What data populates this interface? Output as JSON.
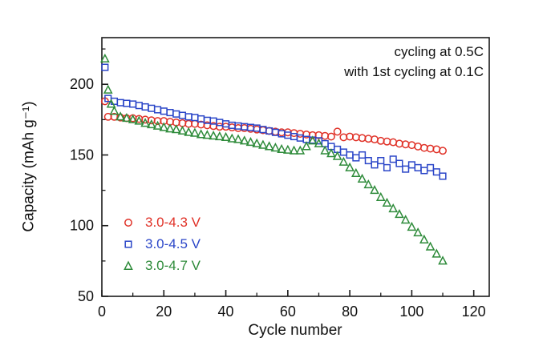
{
  "figure": {
    "background": "#ffffff"
  },
  "chart_data": {
    "type": "scatter",
    "title": "",
    "xlabel": "Cycle number",
    "ylabel": "Capacity (mAh g⁻¹)",
    "annotation": [
      "cycling at 0.5C",
      "with 1st cycling at 0.1C"
    ],
    "xlim": [
      0,
      125
    ],
    "ylim": [
      50,
      233
    ],
    "xticks": [
      0,
      20,
      40,
      60,
      80,
      100,
      120
    ],
    "yticks": [
      50,
      100,
      150,
      200
    ],
    "x_minor_step": 10,
    "y_minor_step": 25,
    "grid": false,
    "legend_position": "inside lower-left",
    "axis_color": "#1b1b1b",
    "series": [
      {
        "name": "3.0-4.3 V",
        "marker": "circle",
        "color": "#e03127",
        "points": [
          [
            1,
            188
          ],
          [
            2,
            177
          ],
          [
            4,
            177
          ],
          [
            6,
            176.5
          ],
          [
            8,
            176
          ],
          [
            10,
            176
          ],
          [
            12,
            175.5
          ],
          [
            14,
            175
          ],
          [
            16,
            174.5
          ],
          [
            18,
            174
          ],
          [
            20,
            174
          ],
          [
            22,
            173.5
          ],
          [
            24,
            173
          ],
          [
            26,
            172.5
          ],
          [
            28,
            172
          ],
          [
            30,
            172
          ],
          [
            32,
            171.5
          ],
          [
            34,
            171
          ],
          [
            36,
            170.5
          ],
          [
            38,
            170
          ],
          [
            40,
            170
          ],
          [
            42,
            169.5
          ],
          [
            44,
            169
          ],
          [
            46,
            169
          ],
          [
            48,
            168.5
          ],
          [
            50,
            168
          ],
          [
            52,
            167.5
          ],
          [
            54,
            167
          ],
          [
            56,
            166.5
          ],
          [
            58,
            166
          ],
          [
            60,
            166
          ],
          [
            62,
            165.5
          ],
          [
            64,
            165
          ],
          [
            66,
            164.5
          ],
          [
            68,
            164
          ],
          [
            70,
            164
          ],
          [
            72,
            163.5
          ],
          [
            74,
            163
          ],
          [
            76,
            166.5
          ],
          [
            78,
            162.5
          ],
          [
            80,
            163
          ],
          [
            82,
            162.5
          ],
          [
            84,
            162
          ],
          [
            86,
            161.5
          ],
          [
            88,
            161
          ],
          [
            90,
            160
          ],
          [
            92,
            159.5
          ],
          [
            94,
            159
          ],
          [
            96,
            158
          ],
          [
            98,
            157.5
          ],
          [
            100,
            157
          ],
          [
            102,
            156
          ],
          [
            104,
            155
          ],
          [
            106,
            154.5
          ],
          [
            108,
            154
          ],
          [
            110,
            153
          ]
        ]
      },
      {
        "name": "3.0-4.5 V",
        "marker": "square",
        "color": "#2b46c8",
        "points": [
          [
            1,
            212
          ],
          [
            2,
            190
          ],
          [
            4,
            188
          ],
          [
            6,
            187
          ],
          [
            8,
            186.5
          ],
          [
            10,
            186
          ],
          [
            12,
            185
          ],
          [
            14,
            184
          ],
          [
            16,
            183
          ],
          [
            18,
            182
          ],
          [
            20,
            181
          ],
          [
            22,
            180
          ],
          [
            24,
            179
          ],
          [
            26,
            178
          ],
          [
            28,
            177
          ],
          [
            30,
            176.5
          ],
          [
            32,
            175.5
          ],
          [
            34,
            174.5
          ],
          [
            36,
            174
          ],
          [
            38,
            173
          ],
          [
            40,
            172
          ],
          [
            42,
            171
          ],
          [
            44,
            170.5
          ],
          [
            46,
            170
          ],
          [
            48,
            169.5
          ],
          [
            50,
            169
          ],
          [
            52,
            168
          ],
          [
            54,
            167
          ],
          [
            56,
            166
          ],
          [
            58,
            165
          ],
          [
            60,
            164
          ],
          [
            62,
            163
          ],
          [
            64,
            162
          ],
          [
            66,
            161
          ],
          [
            68,
            160.5
          ],
          [
            70,
            160
          ],
          [
            72,
            158
          ],
          [
            74,
            156
          ],
          [
            76,
            154
          ],
          [
            78,
            152
          ],
          [
            80,
            150
          ],
          [
            82,
            148
          ],
          [
            84,
            150
          ],
          [
            86,
            146
          ],
          [
            88,
            143
          ],
          [
            90,
            146
          ],
          [
            92,
            141
          ],
          [
            94,
            147
          ],
          [
            96,
            144
          ],
          [
            98,
            140
          ],
          [
            100,
            143
          ],
          [
            102,
            141
          ],
          [
            104,
            139
          ],
          [
            106,
            141
          ],
          [
            108,
            138
          ],
          [
            110,
            135
          ]
        ]
      },
      {
        "name": "3.0-4.7 V",
        "marker": "triangle",
        "color": "#2e8b3a",
        "points": [
          [
            1,
            218
          ],
          [
            2,
            196
          ],
          [
            3,
            186
          ],
          [
            4,
            181
          ],
          [
            6,
            177
          ],
          [
            8,
            176
          ],
          [
            10,
            175
          ],
          [
            12,
            174
          ],
          [
            14,
            172.5
          ],
          [
            16,
            171.5
          ],
          [
            18,
            170.5
          ],
          [
            20,
            169.5
          ],
          [
            22,
            168.5
          ],
          [
            24,
            168
          ],
          [
            26,
            167
          ],
          [
            28,
            166
          ],
          [
            30,
            165.5
          ],
          [
            32,
            164.5
          ],
          [
            34,
            164
          ],
          [
            36,
            163.5
          ],
          [
            38,
            163
          ],
          [
            40,
            162.5
          ],
          [
            42,
            161.5
          ],
          [
            44,
            161
          ],
          [
            46,
            160
          ],
          [
            48,
            159
          ],
          [
            50,
            158
          ],
          [
            52,
            157
          ],
          [
            54,
            156
          ],
          [
            56,
            155
          ],
          [
            58,
            154
          ],
          [
            60,
            153.5
          ],
          [
            62,
            153
          ],
          [
            64,
            153
          ],
          [
            66,
            156
          ],
          [
            68,
            160
          ],
          [
            70,
            158
          ],
          [
            72,
            153
          ],
          [
            74,
            151
          ],
          [
            76,
            149
          ],
          [
            78,
            145
          ],
          [
            80,
            141
          ],
          [
            82,
            137
          ],
          [
            84,
            133
          ],
          [
            86,
            129
          ],
          [
            88,
            125
          ],
          [
            90,
            120
          ],
          [
            92,
            116
          ],
          [
            94,
            112
          ],
          [
            96,
            108
          ],
          [
            98,
            104
          ],
          [
            100,
            99
          ],
          [
            102,
            95
          ],
          [
            104,
            90
          ],
          [
            106,
            85
          ],
          [
            108,
            80
          ],
          [
            110,
            75
          ]
        ]
      }
    ]
  }
}
